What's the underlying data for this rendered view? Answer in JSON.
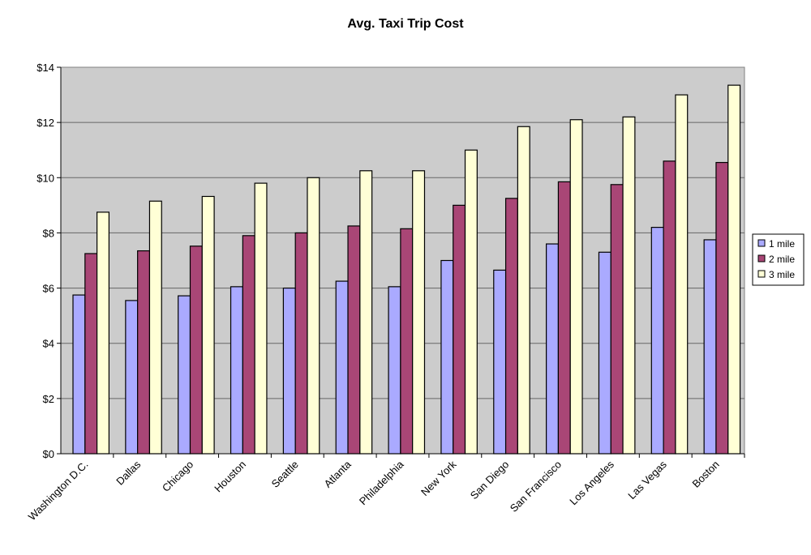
{
  "chart_data": {
    "type": "bar",
    "title": "Avg. Taxi Trip Cost",
    "xlabel": "",
    "ylabel": "",
    "ylim": [
      0,
      14
    ],
    "yticks": [
      "$0",
      "$2",
      "$4",
      "$6",
      "$8",
      "$10",
      "$12",
      "$14"
    ],
    "ytick_values": [
      0,
      2,
      4,
      6,
      8,
      10,
      12,
      14
    ],
    "grid": true,
    "legend_position": "right",
    "categories": [
      "Washington D.C.",
      "Dallas",
      "Chicago",
      "Houston",
      "Seattle",
      "Atlanta",
      "Philadelphia",
      "New York",
      "San Diego",
      "San Francisco",
      "Los Angeles",
      "Las Vegas",
      "Boston"
    ],
    "series": [
      {
        "name": "1 mile",
        "color": "#aaaaff",
        "values": [
          5.75,
          5.55,
          5.72,
          6.05,
          6.0,
          6.25,
          6.05,
          7.0,
          6.65,
          7.6,
          7.3,
          8.2,
          7.75
        ]
      },
      {
        "name": "2 mile",
        "color": "#a94676",
        "values": [
          7.25,
          7.35,
          7.52,
          7.9,
          8.0,
          8.25,
          8.15,
          9.0,
          9.25,
          9.85,
          9.75,
          10.6,
          10.55
        ]
      },
      {
        "name": "3 mile",
        "color": "#ffffd6",
        "values": [
          8.75,
          9.15,
          9.32,
          9.8,
          10.0,
          10.25,
          10.25,
          11.0,
          11.85,
          12.1,
          12.2,
          13.0,
          13.35
        ]
      }
    ],
    "plot_background": "#cccccc"
  }
}
